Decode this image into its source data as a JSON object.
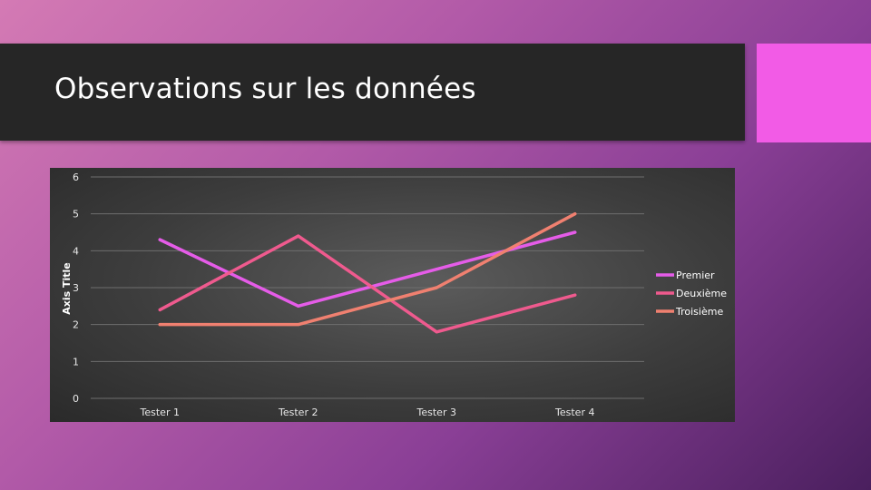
{
  "slide": {
    "title": "Observations sur les données",
    "accent_color": "#f25be6",
    "title_bar_color": "#262626"
  },
  "chart_data": {
    "type": "line",
    "categories": [
      "Tester 1",
      "Tester 2",
      "Tester 3",
      "Tester 4"
    ],
    "series": [
      {
        "name": "Premier",
        "values": [
          4.3,
          2.5,
          3.5,
          4.5
        ],
        "color": "#e55ce8"
      },
      {
        "name": "Deuxième",
        "values": [
          2.4,
          4.4,
          1.8,
          2.8
        ],
        "color": "#ef5a8e"
      },
      {
        "name": "Troisième",
        "values": [
          2.0,
          2.0,
          3.0,
          5.0
        ],
        "color": "#f08070"
      }
    ],
    "title": "",
    "xlabel": "",
    "ylabel": "Axis Title",
    "ylim": [
      0,
      6
    ],
    "yticks": [
      "0",
      "1",
      "2",
      "3",
      "4",
      "5",
      "6"
    ],
    "grid": true,
    "legend_position": "right"
  }
}
